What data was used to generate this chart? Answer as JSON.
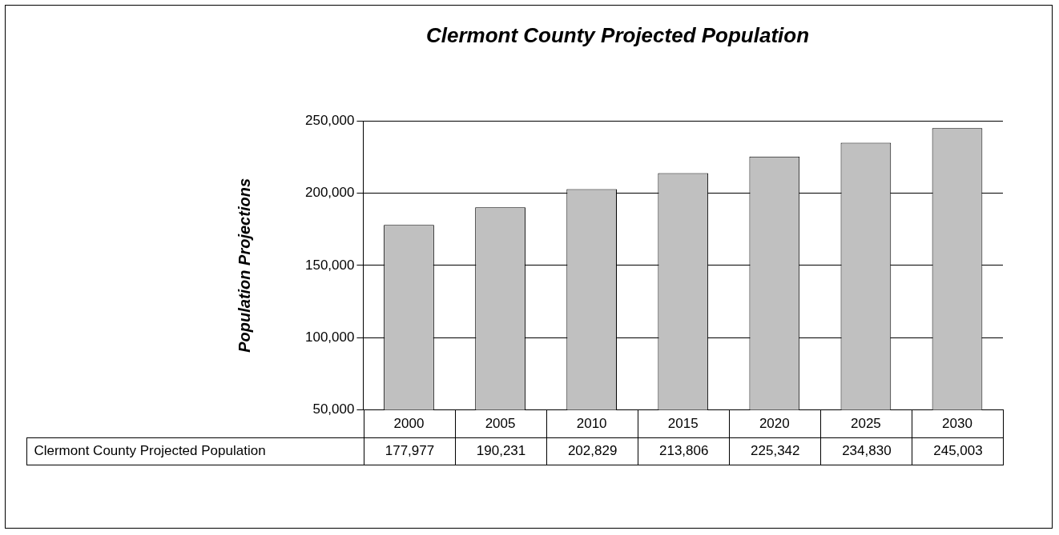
{
  "chart_data": {
    "type": "bar",
    "title": "Clermont County Projected Population",
    "ylabel": "Population Projections",
    "categories": [
      "2000",
      "2005",
      "2010",
      "2015",
      "2020",
      "2025",
      "2030"
    ],
    "series": [
      {
        "name": "Clermont County Projected Population",
        "color": "#c0c0c0",
        "values": [
          177977,
          190231,
          202829,
          213806,
          225342,
          234830,
          245003
        ]
      }
    ],
    "ylim": [
      50000,
      250000
    ],
    "yticks": [
      {
        "value": 50000,
        "label": "50,000"
      },
      {
        "value": 100000,
        "label": "100,000"
      },
      {
        "value": 150000,
        "label": "150,000"
      },
      {
        "value": 200000,
        "label": "200,000"
      },
      {
        "value": 250000,
        "label": "250,000"
      }
    ],
    "value_labels": [
      "177,977",
      "190,231",
      "202,829",
      "213,806",
      "225,342",
      "234,830",
      "245,003"
    ],
    "grid": "y",
    "legend": false
  }
}
